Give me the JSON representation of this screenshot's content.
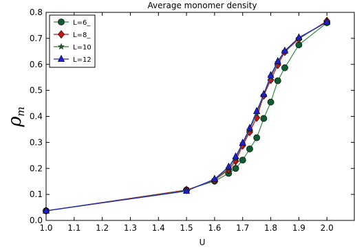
{
  "chart_data": {
    "type": "line",
    "title": "Average monomer density",
    "xlabel": "U",
    "ylabel": "ρ",
    "ylabel_sub": "m",
    "xlim": [
      1.0,
      2.1
    ],
    "ylim": [
      0.0,
      0.8
    ],
    "xticks": [
      "1.0",
      "1.1",
      "1.2",
      "1.3",
      "1.4",
      "1.5",
      "1.6",
      "1.7",
      "1.8",
      "1.9",
      "2.0"
    ],
    "yticks": [
      "0.0",
      "0.1",
      "0.2",
      "0.3",
      "0.4",
      "0.5",
      "0.6",
      "0.7",
      "0.8"
    ],
    "legend_position": "top-left",
    "grid": false,
    "series": [
      {
        "name": "L=6_",
        "color": "#2e8b3e",
        "marker_color": "#0f5a2e",
        "marker": "circle",
        "x": [
          1.0,
          1.5,
          1.6,
          1.65,
          1.675,
          1.7,
          1.725,
          1.75,
          1.775,
          1.8,
          1.825,
          1.85,
          1.9,
          2.0
        ],
        "y": [
          0.037,
          0.117,
          0.151,
          0.181,
          0.2,
          0.232,
          0.275,
          0.318,
          0.392,
          0.455,
          0.537,
          0.587,
          0.675,
          0.76
        ]
      },
      {
        "name": "L=8_",
        "color": "#c81414",
        "marker_color": "#c81414",
        "marker": "diamond",
        "x": [
          1.0,
          1.5,
          1.6,
          1.65,
          1.675,
          1.7,
          1.725,
          1.75,
          1.775,
          1.8,
          1.825,
          1.85,
          1.9,
          2.0
        ],
        "y": [
          0.037,
          0.117,
          0.155,
          0.195,
          0.228,
          0.288,
          0.34,
          0.395,
          0.48,
          0.54,
          0.598,
          0.648,
          0.698,
          0.767
        ]
      },
      {
        "name": "L=10",
        "color": "#2e7d32",
        "marker_color": "#1b5e20",
        "marker": "star",
        "x": [
          1.0,
          1.5,
          1.6,
          1.65,
          1.675,
          1.7,
          1.725,
          1.75,
          1.775,
          1.8,
          1.825,
          1.85,
          1.9,
          2.0
        ],
        "y": [
          0.037,
          0.115,
          0.157,
          0.2,
          0.238,
          0.295,
          0.348,
          0.41,
          0.482,
          0.552,
          0.607,
          0.651,
          0.7,
          0.763
        ]
      },
      {
        "name": "L=12",
        "color": "#1f1fd1",
        "marker_color": "#1f1fd1",
        "marker": "triangle",
        "x": [
          1.0,
          1.5,
          1.6,
          1.65,
          1.675,
          1.7,
          1.725,
          1.75,
          1.775,
          1.8,
          1.825,
          1.85,
          1.9,
          2.0
        ],
        "y": [
          0.037,
          0.113,
          0.159,
          0.206,
          0.245,
          0.298,
          0.355,
          0.42,
          0.485,
          0.558,
          0.612,
          0.652,
          0.703,
          0.763
        ]
      }
    ]
  }
}
